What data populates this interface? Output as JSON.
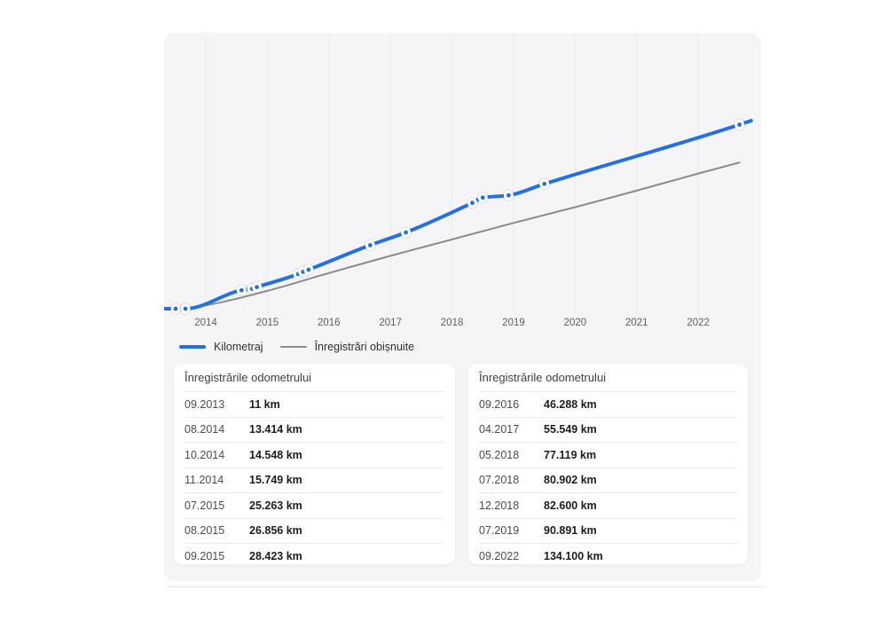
{
  "legend": {
    "items": [
      {
        "label": "Kilometraj"
      },
      {
        "label": "Înregistrări obișnuite"
      }
    ]
  },
  "chart_data": {
    "type": "line",
    "title": "",
    "xlabel": "",
    "ylabel": "",
    "x_ticks": [
      "2014",
      "2015",
      "2016",
      "2017",
      "2018",
      "2019",
      "2020",
      "2021",
      "2022"
    ],
    "x_range_years": [
      2013.32,
      2023.02
    ],
    "y_range_km": [
      0,
      201000
    ],
    "grid": "vertical-only",
    "legend_position": "bottom-left",
    "colors": {
      "kilometraj": "#2570e0",
      "obisnuite": "#8c8c90",
      "grid": "#ebebee"
    },
    "series": [
      {
        "name": "Kilometraj",
        "color": "#2570e0",
        "markers": true,
        "x": [
          2013.51,
          2013.67,
          2014.58,
          2014.75,
          2014.83,
          2015.5,
          2015.58,
          2015.67,
          2016.67,
          2017.25,
          2018.33,
          2018.5,
          2018.92,
          2019.5,
          2022.67
        ],
        "y": [
          0,
          11,
          13414,
          14548,
          15749,
          25263,
          26856,
          28423,
          46288,
          55549,
          77119,
          80902,
          82600,
          90891,
          134100
        ],
        "edge_start": [
          2013.32,
          0
        ],
        "edge_end": [
          2022.86,
          137000
        ]
      },
      {
        "name": "Înregistrări obișnuite",
        "color": "#8c8c90",
        "markers": false,
        "x": [
          2013.32,
          2013.67,
          2014,
          2015,
          2016,
          2017,
          2018,
          2019,
          2020,
          2021,
          2022,
          2022.67
        ],
        "y": [
          0,
          500,
          2500,
          13000,
          26000,
          38500,
          50500,
          62500,
          74000,
          86000,
          98500,
          106500
        ]
      }
    ]
  },
  "odometer_tables": [
    {
      "title": "Înregistrările odometrului",
      "rows": [
        [
          "09.2013",
          "11 km"
        ],
        [
          "08.2014",
          "13.414 km"
        ],
        [
          "10.2014",
          "14.548 km"
        ],
        [
          "11.2014",
          "15.749 km"
        ],
        [
          "07.2015",
          "25.263 km"
        ],
        [
          "08.2015",
          "26.856 km"
        ],
        [
          "09.2015",
          "28.423 km"
        ]
      ]
    },
    {
      "title": "Înregistrările odometrului",
      "rows": [
        [
          "09.2016",
          "46.288 km"
        ],
        [
          "04.2017",
          "55.549 km"
        ],
        [
          "05.2018",
          "77.119 km"
        ],
        [
          "07.2018",
          "80.902 km"
        ],
        [
          "12.2018",
          "82.600 km"
        ],
        [
          "07.2019",
          "90.891 km"
        ],
        [
          "09.2022",
          "134.100 km"
        ]
      ]
    }
  ]
}
